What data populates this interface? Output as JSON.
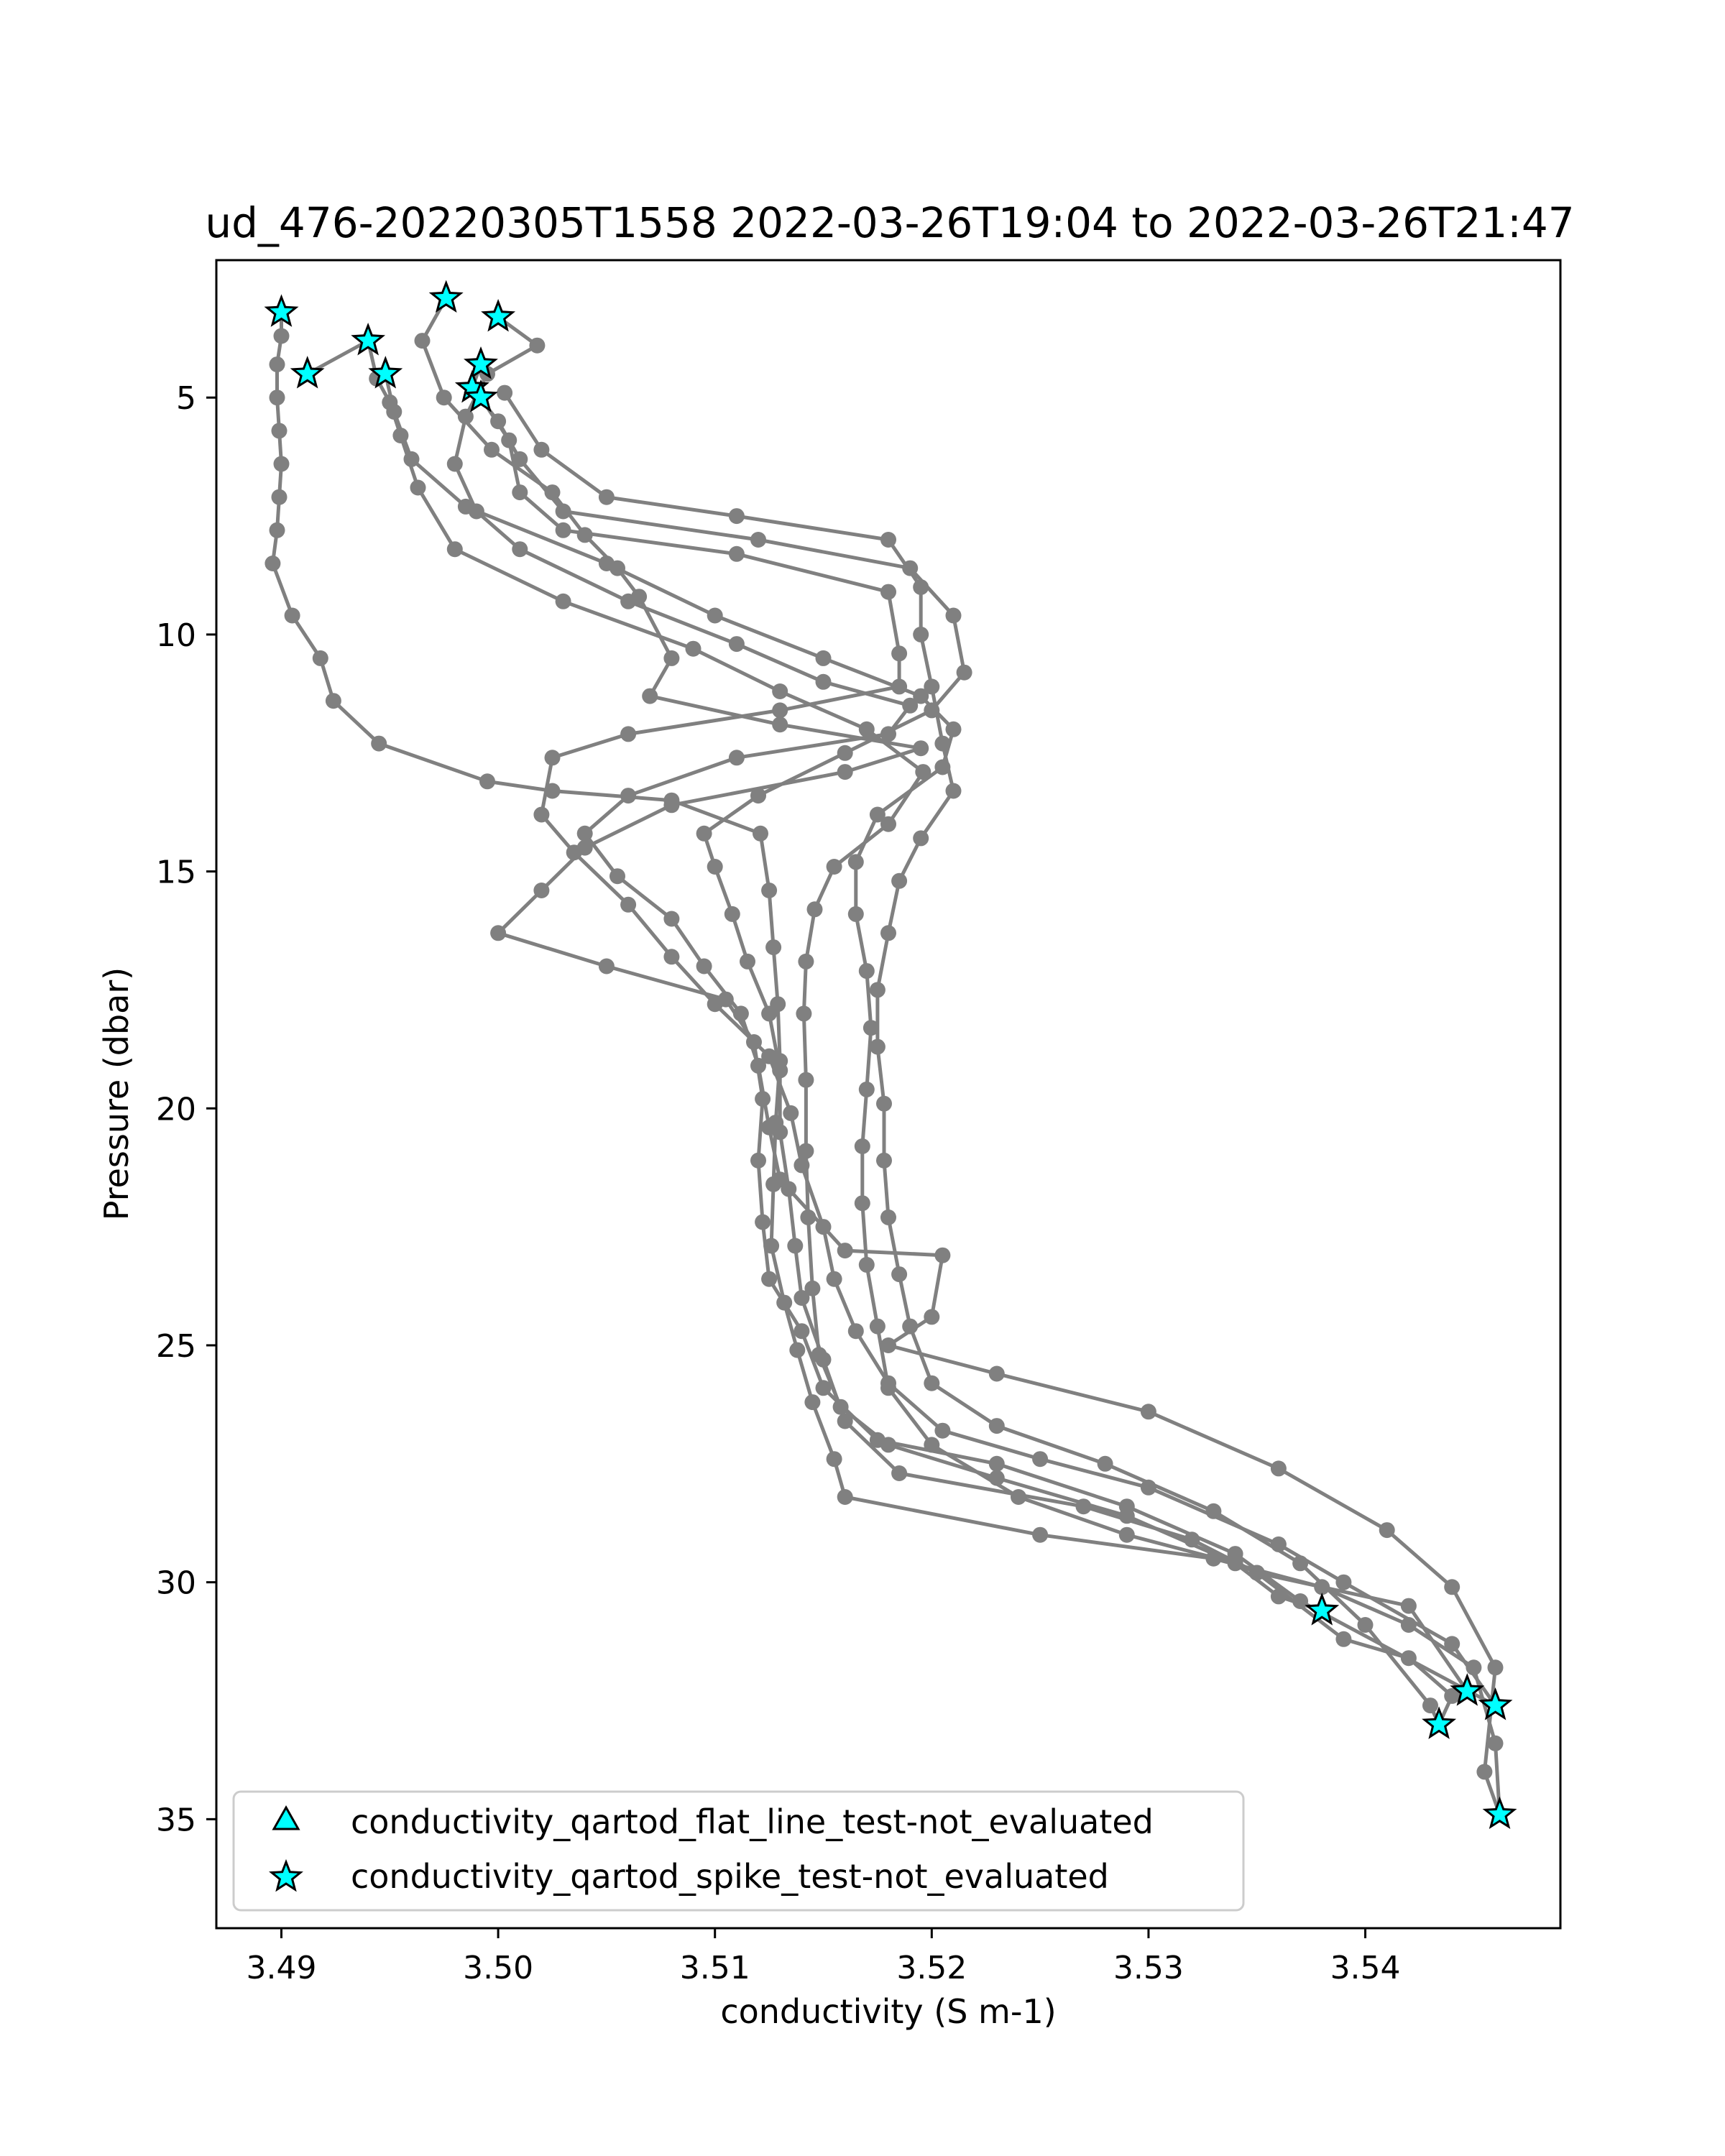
{
  "chart_data": {
    "type": "line",
    "title": "ud_476-20220305T1558 2022-03-26T19:04 to 2022-03-26T21:47",
    "xlabel": "conductivity (S m-1)",
    "ylabel": "Pressure (dbar)",
    "xlim": [
      3.487,
      3.549
    ],
    "ylim": [
      37.3,
      2.1
    ],
    "y_inverted": true,
    "x_ticks": [
      3.49,
      3.5,
      3.51,
      3.52,
      3.53,
      3.54
    ],
    "x_tick_labels": [
      "3.49",
      "3.50",
      "3.51",
      "3.52",
      "3.53",
      "3.54"
    ],
    "y_ticks": [
      5,
      10,
      15,
      20,
      25,
      30,
      35
    ],
    "y_tick_labels": [
      "5",
      "10",
      "15",
      "20",
      "25",
      "30",
      "35"
    ],
    "grid": false,
    "legend_position": "lower-left",
    "colors": {
      "profile_line": "#808080",
      "flag_marker_fill": "#00ffff",
      "flag_marker_edge": "#000000"
    },
    "legend": [
      {
        "label": "conductivity_qartod_flat_line_test-not_evaluated",
        "marker": "triangle"
      },
      {
        "label": "conductivity_qartod_spike_test-not_evaluated",
        "marker": "star"
      }
    ],
    "series": [
      {
        "points": [
          [
            3.49,
            3.2
          ],
          [
            3.49,
            3.7
          ],
          [
            3.4898,
            4.3
          ],
          [
            3.4898,
            5.0
          ],
          [
            3.4899,
            5.7
          ],
          [
            3.49,
            6.4
          ],
          [
            3.4899,
            7.1
          ],
          [
            3.4898,
            7.8
          ],
          [
            3.4896,
            8.5
          ],
          [
            3.4905,
            9.6
          ],
          [
            3.4918,
            10.5
          ],
          [
            3.4924,
            11.4
          ],
          [
            3.4945,
            12.3
          ],
          [
            3.4995,
            13.1
          ],
          [
            3.5025,
            13.3
          ],
          [
            3.508,
            13.5
          ],
          [
            3.5121,
            14.2
          ],
          [
            3.5125,
            15.4
          ],
          [
            3.5127,
            16.6
          ],
          [
            3.5129,
            17.8
          ],
          [
            3.513,
            19.0
          ],
          [
            3.5128,
            20.3
          ],
          [
            3.5127,
            21.6
          ],
          [
            3.5126,
            22.9
          ],
          [
            3.5132,
            24.1
          ],
          [
            3.5138,
            25.1
          ],
          [
            3.5145,
            26.2
          ],
          [
            3.5155,
            27.4
          ],
          [
            3.516,
            28.2
          ],
          [
            3.525,
            29.0
          ],
          [
            3.533,
            29.5
          ],
          [
            3.538,
            30.1
          ],
          [
            3.542,
            30.9
          ],
          [
            3.545,
            31.8
          ],
          [
            3.546,
            33.4
          ],
          [
            3.5462,
            34.9
          ]
        ]
      },
      {
        "points": [
          [
            3.4912,
            4.5
          ],
          [
            3.494,
            3.8
          ],
          [
            3.4944,
            4.6
          ],
          [
            3.495,
            5.1
          ],
          [
            3.4955,
            5.8
          ],
          [
            3.4963,
            6.9
          ],
          [
            3.498,
            8.2
          ],
          [
            3.503,
            9.3
          ],
          [
            3.509,
            10.3
          ],
          [
            3.513,
            11.2
          ],
          [
            3.517,
            12.0
          ],
          [
            3.5196,
            12.9
          ],
          [
            3.518,
            14.0
          ],
          [
            3.5155,
            14.9
          ],
          [
            3.5146,
            15.8
          ],
          [
            3.5142,
            16.9
          ],
          [
            3.5141,
            18.0
          ],
          [
            3.5142,
            19.4
          ],
          [
            3.5142,
            20.9
          ],
          [
            3.5143,
            22.3
          ],
          [
            3.5145,
            23.8
          ],
          [
            3.5148,
            25.2
          ],
          [
            3.5158,
            26.3
          ],
          [
            3.518,
            27.1
          ],
          [
            3.523,
            27.8
          ],
          [
            3.529,
            28.6
          ],
          [
            3.535,
            29.8
          ],
          [
            3.539,
            31.2
          ],
          [
            3.542,
            31.6
          ],
          [
            3.544,
            32.4
          ],
          [
            3.5434,
            33.0
          ]
        ]
      },
      {
        "points": [
          [
            3.4976,
            2.9
          ],
          [
            3.4965,
            3.8
          ],
          [
            3.4975,
            5.0
          ],
          [
            3.4997,
            6.1
          ],
          [
            3.5025,
            7.0
          ],
          [
            3.504,
            7.9
          ],
          [
            3.5055,
            8.6
          ],
          [
            3.5065,
            9.2
          ],
          [
            3.508,
            10.5
          ],
          [
            3.507,
            11.3
          ],
          [
            3.513,
            11.9
          ],
          [
            3.5195,
            12.4
          ],
          [
            3.516,
            12.9
          ],
          [
            3.508,
            13.6
          ],
          [
            3.504,
            14.5
          ],
          [
            3.502,
            15.4
          ],
          [
            3.5,
            16.3
          ],
          [
            3.505,
            17.0
          ],
          [
            3.5105,
            17.7
          ],
          [
            3.5118,
            18.6
          ],
          [
            3.5122,
            19.8
          ],
          [
            3.512,
            21.1
          ],
          [
            3.5122,
            22.4
          ],
          [
            3.5125,
            23.6
          ],
          [
            3.514,
            24.7
          ],
          [
            3.515,
            25.9
          ],
          [
            3.5175,
            27.0
          ],
          [
            3.523,
            27.5
          ],
          [
            3.529,
            28.4
          ],
          [
            3.534,
            29.4
          ],
          [
            3.537,
            30.4
          ],
          [
            3.546,
            32.6
          ]
        ]
      },
      {
        "points": [
          [
            3.5,
            3.3
          ],
          [
            3.5018,
            3.9
          ],
          [
            3.4995,
            4.5
          ],
          [
            3.4985,
            5.4
          ],
          [
            3.498,
            6.4
          ],
          [
            3.499,
            7.4
          ],
          [
            3.501,
            8.2
          ],
          [
            3.506,
            9.3
          ],
          [
            3.511,
            10.2
          ],
          [
            3.515,
            11.0
          ],
          [
            3.519,
            11.5
          ],
          [
            3.518,
            12.1
          ],
          [
            3.511,
            12.6
          ],
          [
            3.506,
            13.4
          ],
          [
            3.504,
            14.2
          ],
          [
            3.5055,
            15.1
          ],
          [
            3.508,
            16.0
          ],
          [
            3.5095,
            17.0
          ],
          [
            3.5112,
            18.0
          ],
          [
            3.512,
            19.1
          ],
          [
            3.5125,
            20.4
          ],
          [
            3.513,
            21.5
          ],
          [
            3.516,
            23.0
          ],
          [
            3.5205,
            23.1
          ],
          [
            3.52,
            24.4
          ],
          [
            3.518,
            25.0
          ],
          [
            3.523,
            25.6
          ],
          [
            3.53,
            26.4
          ],
          [
            3.536,
            27.6
          ],
          [
            3.541,
            28.9
          ],
          [
            3.544,
            30.1
          ],
          [
            3.546,
            31.8
          ],
          [
            3.5455,
            34.0
          ],
          [
            3.5462,
            34.9
          ]
        ]
      },
      {
        "points": [
          [
            3.4992,
            4.3
          ],
          [
            3.4988,
            4.8
          ],
          [
            3.5,
            5.5
          ],
          [
            3.501,
            6.3
          ],
          [
            3.503,
            7.4
          ],
          [
            3.512,
            8.0
          ],
          [
            3.519,
            8.6
          ],
          [
            3.521,
            9.6
          ],
          [
            3.5215,
            10.8
          ],
          [
            3.52,
            11.6
          ],
          [
            3.516,
            12.5
          ],
          [
            3.512,
            13.4
          ],
          [
            3.5095,
            14.2
          ],
          [
            3.51,
            14.9
          ],
          [
            3.5108,
            15.9
          ],
          [
            3.5115,
            16.9
          ],
          [
            3.5125,
            18.0
          ],
          [
            3.513,
            19.2
          ],
          [
            3.513,
            20.5
          ],
          [
            3.5134,
            21.7
          ],
          [
            3.5137,
            22.9
          ],
          [
            3.514,
            24.0
          ],
          [
            3.515,
            25.3
          ],
          [
            3.516,
            26.6
          ],
          [
            3.5185,
            27.7
          ],
          [
            3.527,
            28.4
          ],
          [
            3.532,
            29.1
          ],
          [
            3.535,
            29.8
          ],
          [
            3.542,
            30.5
          ],
          [
            3.5447,
            32.3
          ]
        ]
      },
      {
        "points": [
          [
            3.4992,
            5.0
          ],
          [
            3.5005,
            5.9
          ],
          [
            3.501,
            7.0
          ],
          [
            3.503,
            7.8
          ],
          [
            3.511,
            8.3
          ],
          [
            3.518,
            9.1
          ],
          [
            3.5185,
            10.4
          ],
          [
            3.5185,
            11.1
          ],
          [
            3.513,
            11.6
          ],
          [
            3.506,
            12.1
          ],
          [
            3.5025,
            12.6
          ],
          [
            3.502,
            13.8
          ],
          [
            3.5035,
            14.6
          ],
          [
            3.506,
            15.7
          ],
          [
            3.508,
            16.8
          ],
          [
            3.51,
            17.8
          ],
          [
            3.5125,
            18.9
          ],
          [
            3.5135,
            20.1
          ],
          [
            3.514,
            21.2
          ],
          [
            3.515,
            22.5
          ],
          [
            3.5155,
            23.6
          ],
          [
            3.5165,
            24.7
          ],
          [
            3.518,
            25.8
          ],
          [
            3.5205,
            26.8
          ],
          [
            3.525,
            27.4
          ],
          [
            3.53,
            28.0
          ],
          [
            3.536,
            29.2
          ],
          [
            3.539,
            30.0
          ],
          [
            3.544,
            31.3
          ],
          [
            3.546,
            32.6
          ]
        ]
      },
      {
        "points": [
          [
            3.4948,
            4.5
          ],
          [
            3.4952,
            5.3
          ],
          [
            3.496,
            6.3
          ],
          [
            3.4985,
            7.3
          ],
          [
            3.505,
            8.5
          ],
          [
            3.51,
            9.6
          ],
          [
            3.515,
            10.5
          ],
          [
            3.5195,
            11.3
          ],
          [
            3.521,
            12.0
          ],
          [
            3.5205,
            12.8
          ],
          [
            3.5175,
            13.8
          ],
          [
            3.5165,
            14.8
          ],
          [
            3.5165,
            15.9
          ],
          [
            3.517,
            17.1
          ],
          [
            3.5172,
            18.3
          ],
          [
            3.517,
            19.6
          ],
          [
            3.5168,
            20.8
          ],
          [
            3.5168,
            22.0
          ],
          [
            3.517,
            23.3
          ],
          [
            3.5175,
            24.6
          ],
          [
            3.518,
            25.9
          ],
          [
            3.52,
            27.1
          ],
          [
            3.524,
            28.2
          ],
          [
            3.529,
            29.0
          ],
          [
            3.534,
            29.6
          ],
          [
            3.536,
            30.3
          ],
          [
            3.538,
            30.6
          ]
        ]
      },
      {
        "points": [
          [
            3.5003,
            4.9
          ],
          [
            3.502,
            6.1
          ],
          [
            3.505,
            7.1
          ],
          [
            3.511,
            7.5
          ],
          [
            3.518,
            8.0
          ],
          [
            3.5195,
            9.0
          ],
          [
            3.5195,
            10.0
          ],
          [
            3.52,
            11.1
          ],
          [
            3.5205,
            12.3
          ],
          [
            3.521,
            13.3
          ],
          [
            3.5195,
            14.3
          ],
          [
            3.5185,
            15.2
          ],
          [
            3.518,
            16.3
          ],
          [
            3.5175,
            17.5
          ],
          [
            3.5175,
            18.7
          ],
          [
            3.5178,
            19.9
          ],
          [
            3.5178,
            21.1
          ],
          [
            3.518,
            22.3
          ],
          [
            3.5185,
            23.5
          ],
          [
            3.519,
            24.6
          ],
          [
            3.52,
            25.8
          ],
          [
            3.523,
            26.7
          ],
          [
            3.528,
            27.5
          ],
          [
            3.533,
            28.5
          ],
          [
            3.537,
            29.6
          ],
          [
            3.54,
            30.9
          ],
          [
            3.543,
            32.6
          ],
          [
            3.5434,
            33.0
          ]
        ]
      }
    ],
    "spike_flags": [
      [
        3.49,
        3.2
      ],
      [
        3.494,
        3.8
      ],
      [
        3.4912,
        4.5
      ],
      [
        3.4948,
        4.5
      ],
      [
        3.4976,
        2.9
      ],
      [
        3.5,
        3.3
      ],
      [
        3.4992,
        4.3
      ],
      [
        3.4988,
        4.8
      ],
      [
        3.4992,
        5.0
      ],
      [
        3.538,
        30.6
      ],
      [
        3.5447,
        32.3
      ],
      [
        3.546,
        32.6
      ],
      [
        3.5434,
        33.0
      ],
      [
        3.5462,
        34.9
      ]
    ]
  }
}
